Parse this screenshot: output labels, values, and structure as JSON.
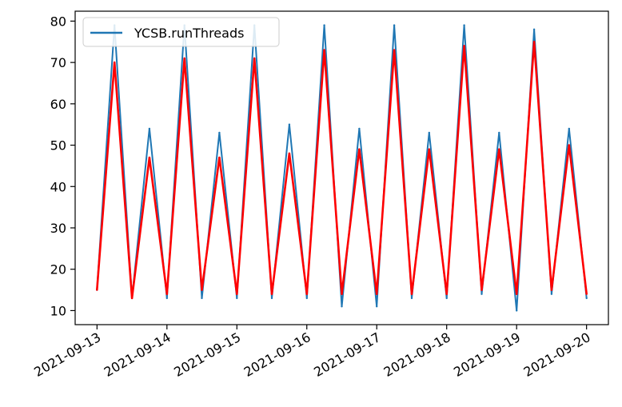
{
  "chart_data": {
    "type": "line",
    "title": "",
    "xlabel": "",
    "ylabel": "",
    "x_range": [
      "2021-09-12T16:30",
      "2021-09-20T07:30"
    ],
    "ylim": [
      6.6,
      82.4
    ],
    "grid": false,
    "legend": {
      "position": "top-left",
      "entries": [
        "YCSB.runThreads"
      ]
    },
    "x_ticks": [
      "2021-09-13",
      "2021-09-14",
      "2021-09-15",
      "2021-09-16",
      "2021-09-17",
      "2021-09-18",
      "2021-09-19",
      "2021-09-20"
    ],
    "y_ticks": [
      "10",
      "20",
      "30",
      "40",
      "50",
      "60",
      "70",
      "80"
    ],
    "colors": {
      "raw": "#1f77b4",
      "smooth": "#ff0000"
    },
    "series": [
      {
        "name": "YCSB.runThreads",
        "color": "#1f77b4",
        "points": [
          [
            "2021-09-13T00:00",
            15
          ],
          [
            "2021-09-13T06:00",
            79
          ],
          [
            "2021-09-13T12:00",
            13
          ],
          [
            "2021-09-13T18:00",
            54
          ],
          [
            "2021-09-14T00:00",
            13
          ],
          [
            "2021-09-14T06:00",
            79
          ],
          [
            "2021-09-14T12:00",
            13
          ],
          [
            "2021-09-14T18:00",
            53
          ],
          [
            "2021-09-15T00:00",
            13
          ],
          [
            "2021-09-15T06:00",
            79
          ],
          [
            "2021-09-15T12:00",
            13
          ],
          [
            "2021-09-15T18:00",
            55
          ],
          [
            "2021-09-16T00:00",
            13
          ],
          [
            "2021-09-16T06:00",
            79
          ],
          [
            "2021-09-16T12:00",
            11
          ],
          [
            "2021-09-16T18:00",
            54
          ],
          [
            "2021-09-17T00:00",
            11
          ],
          [
            "2021-09-17T06:00",
            79
          ],
          [
            "2021-09-17T12:00",
            13
          ],
          [
            "2021-09-17T18:00",
            53
          ],
          [
            "2021-09-18T00:00",
            13
          ],
          [
            "2021-09-18T06:00",
            79
          ],
          [
            "2021-09-18T12:00",
            14
          ],
          [
            "2021-09-18T18:00",
            53
          ],
          [
            "2021-09-19T00:00",
            10
          ],
          [
            "2021-09-19T06:00",
            78
          ],
          [
            "2021-09-19T12:00",
            14
          ],
          [
            "2021-09-19T18:00",
            54
          ],
          [
            "2021-09-20T00:00",
            13
          ]
        ]
      },
      {
        "name": "",
        "color": "#ff0000",
        "points": [
          [
            "2021-09-13T00:00",
            15
          ],
          [
            "2021-09-13T06:00",
            70
          ],
          [
            "2021-09-13T12:00",
            13
          ],
          [
            "2021-09-13T18:00",
            47
          ],
          [
            "2021-09-14T00:00",
            14
          ],
          [
            "2021-09-14T06:00",
            71
          ],
          [
            "2021-09-14T12:00",
            15
          ],
          [
            "2021-09-14T18:00",
            47
          ],
          [
            "2021-09-15T00:00",
            14
          ],
          [
            "2021-09-15T06:00",
            71
          ],
          [
            "2021-09-15T12:00",
            14
          ],
          [
            "2021-09-15T18:00",
            48
          ],
          [
            "2021-09-16T00:00",
            14
          ],
          [
            "2021-09-16T06:00",
            73
          ],
          [
            "2021-09-16T12:00",
            14
          ],
          [
            "2021-09-16T18:00",
            49
          ],
          [
            "2021-09-17T00:00",
            14
          ],
          [
            "2021-09-17T06:00",
            73
          ],
          [
            "2021-09-17T12:00",
            14
          ],
          [
            "2021-09-17T18:00",
            49
          ],
          [
            "2021-09-18T00:00",
            14
          ],
          [
            "2021-09-18T06:00",
            74
          ],
          [
            "2021-09-18T12:00",
            15
          ],
          [
            "2021-09-18T18:00",
            49
          ],
          [
            "2021-09-19T00:00",
            14
          ],
          [
            "2021-09-19T06:00",
            75
          ],
          [
            "2021-09-19T12:00",
            15
          ],
          [
            "2021-09-19T18:00",
            50
          ],
          [
            "2021-09-20T00:00",
            14
          ]
        ]
      }
    ]
  }
}
